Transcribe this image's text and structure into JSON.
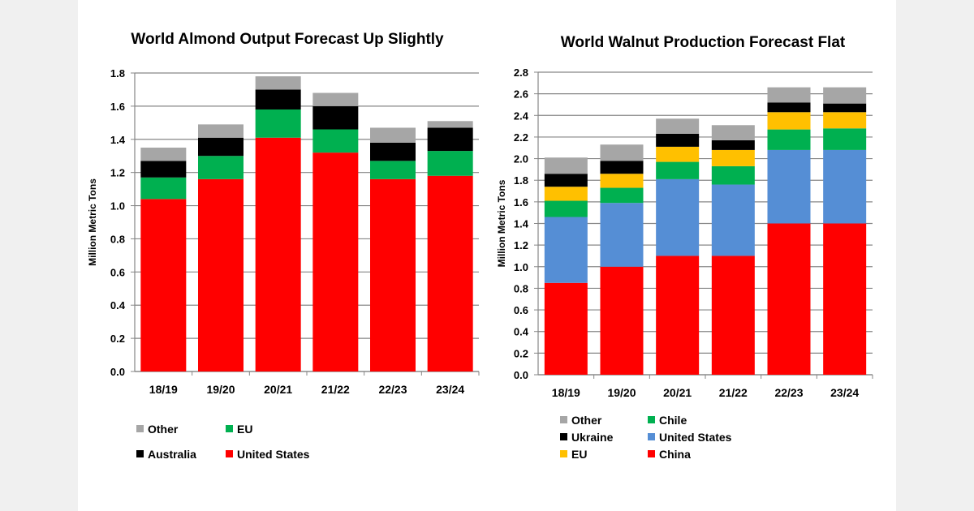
{
  "chart_data": [
    {
      "type": "bar",
      "stacked": true,
      "title": "World Almond Output Forecast Up Slightly",
      "xlabel": "",
      "ylabel": "Million Metric Tons",
      "ylim": [
        0,
        1.8
      ],
      "yticks": [
        "0.0",
        "0.2",
        "0.4",
        "0.6",
        "0.8",
        "1.0",
        "1.2",
        "1.4",
        "1.6",
        "1.8"
      ],
      "grid": true,
      "legend_position": "bottom",
      "categories": [
        "18/19",
        "19/20",
        "20/21",
        "21/22",
        "22/23",
        "23/24"
      ],
      "series": [
        {
          "name": "United States",
          "color": "#ff0000",
          "values": [
            1.04,
            1.16,
            1.41,
            1.32,
            1.16,
            1.18
          ]
        },
        {
          "name": "EU",
          "color": "#00b050",
          "values": [
            0.13,
            0.14,
            0.17,
            0.14,
            0.11,
            0.15
          ]
        },
        {
          "name": "Australia",
          "color": "#000000",
          "values": [
            0.1,
            0.11,
            0.12,
            0.14,
            0.11,
            0.14
          ]
        },
        {
          "name": "Other",
          "color": "#a6a6a6",
          "values": [
            0.08,
            0.08,
            0.08,
            0.08,
            0.09,
            0.04
          ]
        }
      ],
      "legend_order": [
        "Other",
        "EU",
        "Australia",
        "United States"
      ]
    },
    {
      "type": "bar",
      "stacked": true,
      "title": "World Walnut Production Forecast Flat",
      "xlabel": "",
      "ylabel": "Million Metric Tons",
      "ylim": [
        0,
        2.8
      ],
      "yticks": [
        "0.0",
        "0.2",
        "0.4",
        "0.6",
        "0.8",
        "1.0",
        "1.2",
        "1.4",
        "1.6",
        "1.8",
        "2.0",
        "2.2",
        "2.4",
        "2.6",
        "2.8"
      ],
      "grid": true,
      "legend_position": "bottom",
      "categories": [
        "18/19",
        "19/20",
        "20/21",
        "21/22",
        "22/23",
        "23/24"
      ],
      "series": [
        {
          "name": "China",
          "color": "#ff0000",
          "values": [
            0.85,
            1.0,
            1.1,
            1.1,
            1.4,
            1.4
          ]
        },
        {
          "name": "United States",
          "color": "#558ed5",
          "values": [
            0.61,
            0.59,
            0.71,
            0.66,
            0.68,
            0.68
          ]
        },
        {
          "name": "Chile",
          "color": "#00b050",
          "values": [
            0.15,
            0.14,
            0.16,
            0.17,
            0.19,
            0.2
          ]
        },
        {
          "name": "EU",
          "color": "#ffc000",
          "values": [
            0.13,
            0.13,
            0.14,
            0.15,
            0.16,
            0.15
          ]
        },
        {
          "name": "Ukraine",
          "color": "#000000",
          "values": [
            0.12,
            0.12,
            0.12,
            0.09,
            0.09,
            0.08
          ]
        },
        {
          "name": "Other",
          "color": "#a6a6a6",
          "values": [
            0.15,
            0.15,
            0.14,
            0.14,
            0.14,
            0.15
          ]
        }
      ],
      "legend_order": [
        "Other",
        "Ukraine",
        "EU",
        "Chile",
        "United States",
        "China"
      ]
    }
  ]
}
